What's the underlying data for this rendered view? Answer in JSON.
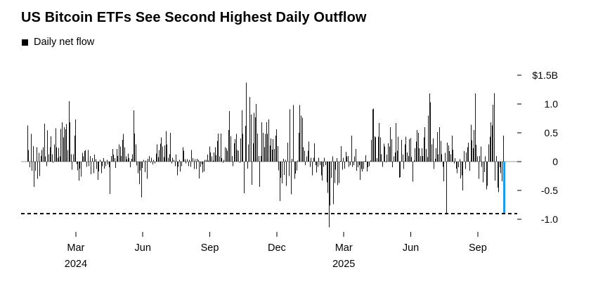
{
  "header": {
    "title": "US Bitcoin ETFs See Second Highest Daily Outflow"
  },
  "legend": {
    "marker": "black-square",
    "label": "Daily net flow"
  },
  "chart_data": {
    "type": "bar",
    "title": "US Bitcoin ETFs See Second Highest Daily Outflow",
    "series_name": "Daily net flow",
    "unit": "$B",
    "ylim": [
      -1.35,
      1.6
    ],
    "grid": false,
    "legend_position": "top-left",
    "bar_color": "#1a1a1a",
    "highlight_color": "#1e9de6",
    "highlight_last_bar": true,
    "zero_line_color": "#9b9b9b",
    "reference_line": {
      "value": -0.9,
      "style": "dashed",
      "color": "#000000"
    },
    "y_ticks": [
      {
        "label": "$1.5B",
        "value": 1.5
      },
      {
        "label": "1.0",
        "value": 1.0
      },
      {
        "label": "0.5",
        "value": 0.5
      },
      {
        "label": "0",
        "value": 0
      },
      {
        "label": "-0.5",
        "value": -0.5
      },
      {
        "label": "-1.0",
        "value": -1.0
      }
    ],
    "x_ticks": [
      {
        "label": "Mar",
        "year": "2024",
        "month": "2024-03"
      },
      {
        "label": "Jun",
        "month": "2024-06"
      },
      {
        "label": "Sep",
        "month": "2024-09"
      },
      {
        "label": "Dec",
        "month": "2024-12"
      },
      {
        "label": "Mar",
        "year": "2025",
        "month": "2025-03"
      },
      {
        "label": "Jun",
        "month": "2025-06"
      },
      {
        "label": "Sep",
        "month": "2025-09"
      }
    ],
    "months": [
      {
        "month": "2024-01",
        "values": [
          0.63,
          0.2,
          -0.1,
          0.48,
          -0.16,
          0.27,
          -0.44,
          -0.16,
          0.25,
          -0.3,
          0.15,
          -0.25,
          0.1,
          0.2
        ]
      },
      {
        "month": "2024-02",
        "values": [
          0.25,
          0.66,
          0.09,
          -0.08,
          0.54,
          0.13,
          0.25,
          0.44,
          0.13,
          -0.02,
          0.3,
          0.58,
          0.25,
          0.07,
          0.24,
          0.09,
          0.57,
          0.68,
          0.42,
          0.6
        ]
      },
      {
        "month": "2024-03",
        "values": [
          0.56,
          0.65,
          0.2,
          1.05,
          0.68,
          0.13,
          -0.14,
          0.13,
          0.45,
          0.73,
          -0.04,
          -0.15,
          -0.33,
          -0.12,
          -0.26,
          0.15,
          0.09,
          0.18,
          0.2,
          -0.09
        ]
      },
      {
        "month": "2024-04",
        "values": [
          0.2,
          -0.08,
          0.1,
          -0.22,
          0.06,
          -0.2,
          0.12,
          0.04,
          -0.13,
          -0.32,
          -0.17,
          0.03,
          -0.2,
          -0.08,
          0.06,
          -0.12,
          -0.08,
          0.03,
          -0.05,
          -0.1
        ]
      },
      {
        "month": "2024-05",
        "values": [
          -0.56,
          0.1,
          0.22,
          0.12,
          0.06,
          -0.11,
          0.22,
          0.1,
          0.3,
          0.26,
          0.1,
          0.38,
          0.48,
          0.25,
          0.09,
          0.04,
          0.14,
          0.06,
          -0.1,
          0.05
        ]
      },
      {
        "month": "2024-06",
        "values": [
          0.13,
          0.89,
          0.49,
          0.3,
          -0.07,
          -0.2,
          -0.39,
          -0.15,
          -0.62,
          -0.11,
          0.03,
          -0.18,
          0.02,
          -0.3,
          0.05,
          0.1,
          -0.02,
          0.07,
          -0.05,
          0.03
        ]
      },
      {
        "month": "2024-07",
        "values": [
          -0.03,
          0.14,
          0.3,
          0.08,
          0.2,
          0.31,
          0.42,
          0.26,
          0.08,
          0.28,
          0.53,
          0.3,
          0.07,
          0.13,
          0.5,
          -0.03,
          0.07,
          0.03,
          -0.08,
          0.12
        ]
      },
      {
        "month": "2024-08",
        "values": [
          -0.24,
          -0.09,
          0.03,
          -0.17,
          -0.08,
          0.25,
          0.19,
          0.04,
          -0.03,
          0.04,
          -0.08,
          0.03,
          -0.09,
          0.2,
          0.06,
          -0.13,
          0.04,
          -0.13,
          0.05,
          0.03
        ]
      },
      {
        "month": "2024-09",
        "values": [
          -0.29,
          -0.09,
          -0.04,
          -0.19,
          -0.17,
          0.03,
          0.03,
          0.12,
          0.02,
          0.26,
          0.16,
          0.09,
          0.02,
          0.16,
          0.25,
          0.11,
          0.36,
          0.49,
          0.09,
          0.49
        ]
      },
      {
        "month": "2024-10",
        "values": [
          0.06,
          -0.02,
          0.03,
          0.25,
          0.23,
          0.19,
          0.55,
          0.88,
          0.44,
          0.1,
          -0.08,
          0.32,
          0.39,
          0.48,
          0.2,
          0.19,
          -0.02,
          0.4,
          0.89,
          0.48
        ]
      },
      {
        "month": "2024-11",
        "values": [
          -0.55,
          0.62,
          1.37,
          -0.12,
          0.3,
          1.12,
          0.82,
          -0.4,
          0.32,
          0.85,
          0.77,
          1.0,
          0.49,
          0.1,
          -0.44,
          0.1,
          0.68,
          0.5,
          0.25,
          0.48
        ]
      },
      {
        "month": "2024-12",
        "values": [
          0.68,
          0.48,
          0.73,
          0.28,
          0.4,
          0.21,
          0.39,
          0.22,
          0.45,
          0.56,
          0.27,
          -0.15,
          -0.68,
          -0.28,
          -0.38,
          0.05,
          -0.23,
          0.03,
          -0.42,
          0.33
        ]
      },
      {
        "month": "2025-01",
        "values": [
          -0.25,
          0.91,
          -0.57,
          0.05,
          0.98,
          -0.3,
          -0.21,
          -0.15,
          0.02,
          0.5,
          0.98,
          0.8,
          0.76,
          0.25,
          0.19,
          -0.06,
          0.09,
          0.19,
          0.35,
          -0.09
        ]
      },
      {
        "month": "2025-02",
        "values": [
          0.07,
          -0.24,
          0.07,
          0.32,
          -0.06,
          -0.19,
          -0.09,
          0.07,
          -0.06,
          -0.24,
          -0.33,
          -0.09,
          0.07,
          -0.06,
          -0.36,
          -0.54,
          -1.14,
          -0.76,
          -0.28,
          0.09
        ]
      },
      {
        "month": "2025-03",
        "values": [
          -0.74,
          -0.37,
          -0.14,
          0.06,
          -0.41,
          -0.37,
          0.01,
          0.27,
          -0.14,
          0.07,
          -0.12,
          0.17,
          0.09,
          0.1,
          -0.09,
          -0.06,
          0.45,
          -0.09,
          -0.06,
          0.09
        ]
      },
      {
        "month": "2025-04",
        "values": [
          0.22,
          -0.16,
          -0.1,
          -0.06,
          -0.32,
          -0.13,
          -0.17,
          -0.13,
          0.0,
          0.11,
          -0.17,
          -0.1,
          -0.08,
          0.02,
          0.38,
          0.91,
          0.92,
          0.44,
          0.42,
          0.06
        ]
      },
      {
        "month": "2025-05",
        "values": [
          0.43,
          0.67,
          0.42,
          0.13,
          -0.09,
          0.31,
          0.26,
          -0.01,
          0.12,
          0.32,
          0.26,
          0.6,
          0.39,
          -0.1,
          0.09,
          0.16,
          0.67,
          0.19,
          0.43,
          -0.28
        ]
      },
      {
        "month": "2025-06",
        "values": [
          -0.27,
          0.38,
          0.12,
          -0.13,
          0.3,
          0.43,
          0.16,
          0.1,
          0.39,
          0.41,
          0.08,
          -0.35,
          0.02,
          0.23,
          0.35,
          0.55,
          0.5,
          0.23,
          0.1,
          0.23
        ]
      },
      {
        "month": "2025-07",
        "values": [
          0.1,
          0.42,
          0.6,
          0.22,
          0.08,
          0.8,
          1.18,
          1.03,
          0.3,
          0.4,
          -0.13,
          0.05,
          0.23,
          0.51,
          0.13,
          0.6,
          0.36,
          0.13,
          -0.09,
          -0.34
        ]
      },
      {
        "month": "2025-08",
        "values": [
          0.15,
          -0.9,
          0.33,
          0.28,
          0.18,
          0.13,
          0.45,
          0.21,
          -0.03,
          0.06,
          -0.12,
          -0.2,
          -0.1,
          0.04,
          -0.29,
          -0.24,
          -0.5,
          0.18,
          -0.13,
          0.16
        ]
      },
      {
        "month": "2025-09",
        "values": [
          0.25,
          0.33,
          -0.16,
          0.64,
          0.37,
          0.23,
          0.55,
          1.18,
          0.29,
          0.09,
          -0.3,
          0.1,
          0.26,
          -0.09,
          -0.36,
          -0.18,
          0.09,
          -0.48,
          -0.42,
          0.3
        ]
      },
      {
        "month": "2025-10",
        "values": [
          0.43,
          0.68,
          0.63,
          0.99,
          1.19,
          -0.33,
          0.1,
          -0.45,
          -0.53,
          -0.1,
          -0.2,
          -0.34,
          0.45,
          -0.9
        ]
      }
    ]
  }
}
